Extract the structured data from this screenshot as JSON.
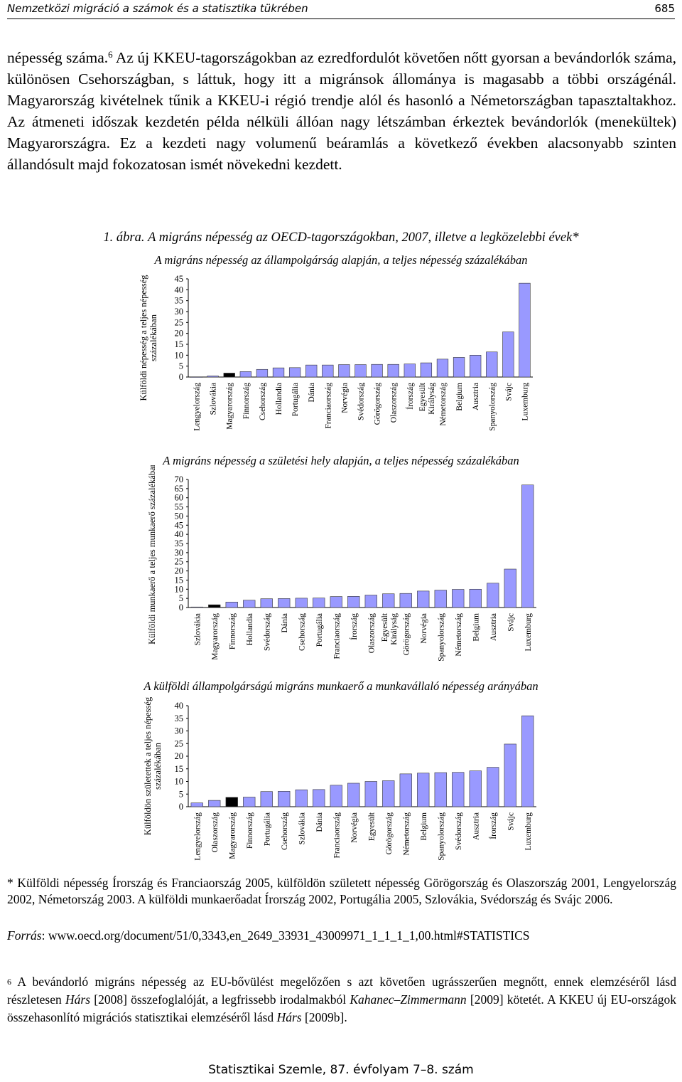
{
  "header": {
    "left": "Nemzetközi migráció a számok és a statisztika tükrében",
    "page_number": "685"
  },
  "body": {
    "lead": "népesség száma.",
    "fn_ref": "6",
    "rest": " Az új KKEU-tagországokban az ezredfordulót követően nőtt gyorsan a bevándorlók száma, különösen Csehországban, s láttuk, hogy itt a migránsok állománya is magasabb a többi országénál. Magyarország kivételnek tűnik a KKEU-i régió trendje alól és hasonló a Németországban tapasztaltakhoz. Az átmeneti időszak kezdetén példa nélküli állóan nagy létszámban érkeztek bevándorlók (menekültek) Magyarországra. Ez a kezdeti nagy volumenű beáramlás a következő években alacsonyabb szinten állandósult majd fokozatosan ismét növekedni kezdett."
  },
  "figure": {
    "number": "1. ábra.",
    "title": "A migráns népesség az OECD-tagországokban, 2007, illetve a legközelebbi évek*"
  },
  "chart_data": [
    {
      "type": "bar",
      "title": "A migráns népesség az állampolgárság alapján, a teljes népesség százalékában",
      "ylabel": "Külföldi népesség a teljes népesség százalékában",
      "ylim": [
        0,
        45
      ],
      "yticks": [
        0,
        5,
        10,
        15,
        20,
        25,
        30,
        35,
        40,
        45
      ],
      "grid": false,
      "highlight": "Magyarország",
      "colors": {
        "bar": "#9999ff",
        "highlight": "#000000"
      },
      "categories": [
        "Lengyelország",
        "Szlovákia",
        "Magyarország",
        "Finnország",
        "Csehország",
        "Hollandia",
        "Portugália",
        "Dánia",
        "Franciaország",
        "Norvégia",
        "Svédország",
        "Görögország",
        "Olaszország",
        "Írország",
        "Egyesült Királyság",
        "Németország",
        "Belgium",
        "Ausztria",
        "Spanyolország",
        "Svájc",
        "Luxemburg"
      ],
      "values": [
        0.1,
        0.5,
        1.8,
        2.5,
        3.5,
        4.2,
        4.3,
        5.5,
        5.5,
        5.7,
        5.7,
        5.8,
        5.8,
        6.0,
        6.5,
        8.2,
        9.0,
        10.0,
        11.5,
        20.7,
        43.0
      ]
    },
    {
      "type": "bar",
      "title": "A migráns népesség a születési hely alapján, a teljes népesség százalékában",
      "ylabel": "Külföldi munkaerő a teljes munkaerő százalékában",
      "ylim": [
        0,
        70
      ],
      "yticks": [
        0,
        5,
        10,
        15,
        20,
        25,
        30,
        35,
        40,
        45,
        50,
        55,
        60,
        65,
        70
      ],
      "grid": false,
      "highlight": "Magyarország",
      "colors": {
        "bar": "#9999ff",
        "highlight": "#000000"
      },
      "categories": [
        "Szlovákia",
        "Magyarország",
        "Finnország",
        "Hollandia",
        "Svédország",
        "Dánia",
        "Csehország",
        "Portugália",
        "Franciaország",
        "Írország",
        "Olaszország",
        "Egyesült Királyság",
        "Görögország",
        "Norvégia",
        "Spanyolország",
        "Németország",
        "Belgium",
        "Ausztria",
        "Svájc",
        "Luxemburg"
      ],
      "values": [
        0.3,
        1.5,
        3.0,
        4.0,
        4.8,
        4.9,
        5.1,
        5.2,
        6.0,
        6.1,
        6.8,
        7.5,
        7.7,
        9.0,
        9.5,
        9.9,
        10.0,
        13.3,
        21.0,
        67.0
      ]
    },
    {
      "type": "bar",
      "title": "A külföldi állampolgárságú migráns munkaerő a munkavállaló népesség arányában",
      "ylabel": "Külföldön születettek a teljes népesség százalékában",
      "ylim": [
        0,
        40
      ],
      "yticks": [
        0,
        5,
        10,
        15,
        20,
        25,
        30,
        35,
        40
      ],
      "grid": false,
      "highlight": "Magyarország",
      "colors": {
        "bar": "#9999ff",
        "highlight": "#000000"
      },
      "categories": [
        "Lengyelország",
        "Olaszország",
        "Magyarország",
        "Finnország",
        "Portugália",
        "Csehország",
        "Szlovákia",
        "Dánia",
        "Franciaország",
        "Norvégia",
        "Egyesült",
        "Görögország",
        "Németország",
        "Belgium",
        "Spanyolország",
        "Svédország",
        "Ausztria",
        "Írország",
        "Svájc",
        "Luxemburg"
      ],
      "values": [
        1.5,
        2.5,
        3.7,
        3.8,
        6.0,
        6.1,
        6.7,
        6.8,
        8.5,
        9.3,
        10.0,
        10.3,
        13.0,
        13.3,
        13.5,
        13.6,
        14.2,
        15.6,
        24.8,
        36.0
      ]
    }
  ],
  "notes": {
    "star_note": "* Külföldi népesség Írország és Franciaország 2005, külföldön született népesség Görögország és Olaszország 2001, Lengyelország 2002, Németország 2003. A külföldi munkaerőadat Írország 2002, Portugália 2005, Szlovákia, Svédország és Svájc 2006.",
    "source_label": "Forrás",
    "source_text": ": www.oecd.org/document/51/0,3343,en_2649_33931_43009971_1_1_1_1,00.html#STATISTICS"
  },
  "footnote6": {
    "mark": "6",
    "t1": " A bevándorló migráns népesség az EU-bővülést megelőzően s azt követően ugrásszerűen megnőtt, ennek elemzéséről lásd részletesen ",
    "a1": "Hárs",
    "t2": " [2008] összefoglalóját, a legfrissebb irodalmakból ",
    "a2": "Kahanec–Zimmermann",
    "t3": " [2009] kötetét. A KKEU új EU-országok összehasonlító migrációs statisztikai elemzéséről lásd ",
    "a3": "Hárs",
    "t4": " [2009b]."
  },
  "footer": {
    "journal": "Statisztikai Szemle, 87. évfolyam 7–8. szám"
  }
}
